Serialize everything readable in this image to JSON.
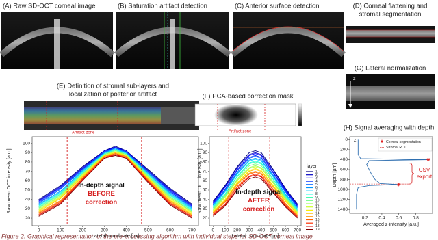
{
  "panels": {
    "a": {
      "title": "(A) Raw SD-OCT corneal image"
    },
    "b": {
      "title": "(B) Saturation artifact detection"
    },
    "c": {
      "title": "(C) Anterior surface detection"
    },
    "d": {
      "title_lines": [
        "(D) Corneal flattening and",
        "stromal segmentation"
      ]
    },
    "g": {
      "title": "(G) Lateral normalization",
      "axis_label": "z"
    },
    "e": {
      "title_lines": [
        "(E) Definition of stromal sub-layers and",
        "localization of posterior artifact"
      ],
      "zone_label": "Artifact zone"
    },
    "f": {
      "title": "(F) PCA-based correction mask",
      "zone_label": "Artifact zone"
    },
    "h": {
      "title": "(H) Signal averaging with depth"
    }
  },
  "chart_data": [
    {
      "type": "line",
      "ylabel": "Raw mean OCT intensity [a.u.]",
      "xlabel": "Lateral coordinate [px]",
      "x": [
        0,
        100,
        200,
        300,
        350,
        400,
        500,
        600,
        700
      ],
      "xlim": [
        -30,
        730
      ],
      "xticks": [
        0,
        100,
        200,
        300,
        400,
        500,
        600,
        700
      ],
      "ylim": [
        12,
        107
      ],
      "yticks": [
        20,
        30,
        40,
        50,
        60,
        70,
        80,
        90,
        100
      ],
      "artifact_lines": [
        130,
        470
      ],
      "artifact_color": "#d62020",
      "annotation": [
        {
          "text": "In-depth signal",
          "color": "#111111"
        },
        {
          "text": "BEFORE",
          "color": "#d62020"
        },
        {
          "text": "correction",
          "color": "#d62020"
        }
      ],
      "legend_title": "layer",
      "series": [
        {
          "name": "1",
          "color": "#00007f",
          "values": [
            40,
            55,
            75,
            92,
            97,
            92,
            72,
            52,
            35
          ]
        },
        {
          "name": "2",
          "color": "#0000c4",
          "values": [
            39,
            54,
            74,
            92,
            96,
            92,
            71,
            51,
            34
          ]
        },
        {
          "name": "3",
          "color": "#0000ff",
          "values": [
            38,
            53,
            73,
            91,
            96,
            91,
            70,
            50,
            33
          ]
        },
        {
          "name": "4",
          "color": "#0030ff",
          "values": [
            37,
            52,
            72,
            91,
            95,
            91,
            70,
            49,
            32
          ]
        },
        {
          "name": "5",
          "color": "#0064ff",
          "values": [
            36,
            51,
            72,
            90,
            95,
            90,
            69,
            48,
            32
          ]
        },
        {
          "name": "6",
          "color": "#0098ff",
          "values": [
            35,
            49,
            71,
            90,
            94,
            90,
            68,
            47,
            31
          ]
        },
        {
          "name": "7",
          "color": "#00ccff",
          "values": [
            34,
            48,
            70,
            89,
            94,
            89,
            67,
            46,
            30
          ]
        },
        {
          "name": "8",
          "color": "#16ffe1",
          "values": [
            33,
            47,
            69,
            89,
            93,
            89,
            67,
            45,
            29
          ]
        },
        {
          "name": "9",
          "color": "#44ffb2",
          "values": [
            32,
            46,
            68,
            88,
            93,
            88,
            66,
            44,
            28
          ]
        },
        {
          "name": "10",
          "color": "#72ff84",
          "values": [
            31,
            45,
            67,
            88,
            92,
            88,
            65,
            43,
            27
          ]
        },
        {
          "name": "11",
          "color": "#a0ff56",
          "values": [
            30,
            44,
            67,
            88,
            91,
            88,
            64,
            42,
            27
          ]
        },
        {
          "name": "12",
          "color": "#ceff29",
          "values": [
            29,
            43,
            66,
            87,
            91,
            87,
            63,
            41,
            26
          ]
        },
        {
          "name": "13",
          "color": "#fbf100",
          "values": [
            28,
            42,
            65,
            87,
            90,
            87,
            63,
            40,
            25
          ]
        },
        {
          "name": "14",
          "color": "#ffc000",
          "values": [
            27,
            41,
            64,
            86,
            90,
            86,
            62,
            39,
            24
          ]
        },
        {
          "name": "15",
          "color": "#ff9100",
          "values": [
            26,
            39,
            63,
            86,
            89,
            86,
            61,
            38,
            23
          ]
        },
        {
          "name": "16",
          "color": "#ff6200",
          "values": [
            25,
            38,
            62,
            85,
            89,
            85,
            60,
            37,
            22
          ]
        },
        {
          "name": "17",
          "color": "#ff3000",
          "values": [
            24,
            37,
            62,
            85,
            88,
            85,
            60,
            36,
            22
          ]
        },
        {
          "name": "18",
          "color": "#d40000",
          "values": [
            23,
            36,
            61,
            84,
            88,
            84,
            59,
            35,
            21
          ]
        },
        {
          "name": "19",
          "color": "#7f0000",
          "values": [
            22,
            35,
            60,
            84,
            87,
            84,
            58,
            34,
            20
          ]
        }
      ]
    },
    {
      "type": "line",
      "ylabel": "Raw mean OCT intensity [a.u.]",
      "xlabel": "Lateral coordinate [px]",
      "x": [
        0,
        100,
        200,
        300,
        350,
        400,
        500,
        600,
        700
      ],
      "xlim": [
        -30,
        730
      ],
      "xticks": [
        0,
        100,
        200,
        300,
        400,
        500,
        600,
        700
      ],
      "ylim": [
        12,
        107
      ],
      "yticks": [
        20,
        30,
        40,
        50,
        60,
        70,
        80,
        90,
        100
      ],
      "artifact_lines": [
        130,
        470
      ],
      "artifact_color": "#d62020",
      "annotation": [
        {
          "text": "In-depth signal",
          "color": "#111111"
        },
        {
          "text": "AFTER",
          "color": "#d62020"
        },
        {
          "text": "correction",
          "color": "#d62020"
        }
      ],
      "series": [
        {
          "color": "#00007f",
          "values": [
            38,
            55,
            75,
            90,
            92,
            90,
            72,
            52,
            35
          ]
        },
        {
          "color": "#0000c4",
          "values": [
            37,
            54,
            74,
            88,
            90,
            88,
            71,
            51,
            34
          ]
        },
        {
          "color": "#0000ff",
          "values": [
            36,
            53,
            72,
            87,
            89,
            87,
            69,
            50,
            33
          ]
        },
        {
          "color": "#0030ff",
          "values": [
            35,
            51,
            71,
            85,
            87,
            85,
            68,
            49,
            32
          ]
        },
        {
          "color": "#0064ff",
          "values": [
            34,
            50,
            69,
            84,
            86,
            84,
            66,
            48,
            32
          ]
        },
        {
          "color": "#0098ff",
          "values": [
            34,
            49,
            68,
            82,
            84,
            82,
            65,
            46,
            31
          ]
        },
        {
          "color": "#00ccff",
          "values": [
            33,
            48,
            67,
            81,
            83,
            81,
            64,
            45,
            30
          ]
        },
        {
          "color": "#16ffe1",
          "values": [
            32,
            46,
            65,
            79,
            81,
            79,
            62,
            44,
            29
          ]
        },
        {
          "color": "#44ffb2",
          "values": [
            31,
            45,
            64,
            78,
            80,
            78,
            61,
            43,
            28
          ]
        },
        {
          "color": "#72ff84",
          "values": [
            30,
            44,
            62,
            76,
            78,
            76,
            59,
            42,
            27
          ]
        },
        {
          "color": "#a0ff56",
          "values": [
            29,
            43,
            61,
            74,
            76,
            74,
            58,
            41,
            27
          ]
        },
        {
          "color": "#ceff29",
          "values": [
            28,
            42,
            60,
            73,
            75,
            73,
            57,
            40,
            26
          ]
        },
        {
          "color": "#fbf100",
          "values": [
            27,
            40,
            58,
            71,
            73,
            71,
            55,
            39,
            25
          ]
        },
        {
          "color": "#ffc000",
          "values": [
            26,
            39,
            57,
            70,
            72,
            70,
            54,
            38,
            24
          ]
        },
        {
          "color": "#ff9100",
          "values": [
            26,
            38,
            56,
            68,
            70,
            68,
            53,
            36,
            23
          ]
        },
        {
          "color": "#ff6200",
          "values": [
            25,
            37,
            54,
            67,
            69,
            67,
            51,
            35,
            22
          ]
        },
        {
          "color": "#ff3000",
          "values": [
            24,
            35,
            53,
            65,
            67,
            65,
            50,
            34,
            22
          ]
        },
        {
          "color": "#d40000",
          "values": [
            23,
            34,
            51,
            64,
            66,
            64,
            48,
            33,
            21
          ]
        },
        {
          "color": "#7f0000",
          "values": [
            22,
            33,
            50,
            62,
            64,
            62,
            47,
            32,
            20
          ]
        }
      ]
    },
    {
      "type": "profile",
      "ylabel": "Depth [µm]",
      "xlabel": "Averaged z-intensity [a.u.]",
      "axis_label": "z",
      "xlim": [
        0.02,
        1.0
      ],
      "xticks": [
        0.2,
        0.4,
        0.6,
        0.8
      ],
      "ylim": [
        -60,
        1480
      ],
      "yticks": [
        0,
        200,
        400,
        600,
        800,
        1000,
        1200,
        1400
      ],
      "y_inverted": true,
      "profile": {
        "color": "#2f6fb0",
        "intensity": [
          0.12,
          0.12,
          0.15,
          0.95,
          0.25,
          0.22,
          0.25,
          0.28,
          0.32,
          0.38,
          0.6,
          0.25,
          0.12,
          0.1,
          0.1
        ],
        "depth": [
          0,
          300,
          380,
          400,
          420,
          500,
          600,
          700,
          800,
          880,
          900,
          920,
          960,
          1100,
          1400
        ]
      },
      "segmentation": {
        "name": "Corneal segmentation",
        "color": "#e02020",
        "intensity": [
          0.95,
          0.6
        ],
        "depth": [
          400,
          900
        ]
      },
      "roi": {
        "name": "Stromal ROI",
        "color": "#e05050",
        "depth": [
          470,
          890
        ]
      },
      "export": {
        "text_lines": [
          "CSV",
          "export"
        ],
        "color": "#d62020"
      }
    }
  ],
  "caption": "Figure 2. Graphical representation of the pre-processing algorithm with individual steps for SD-OCT corneal image"
}
